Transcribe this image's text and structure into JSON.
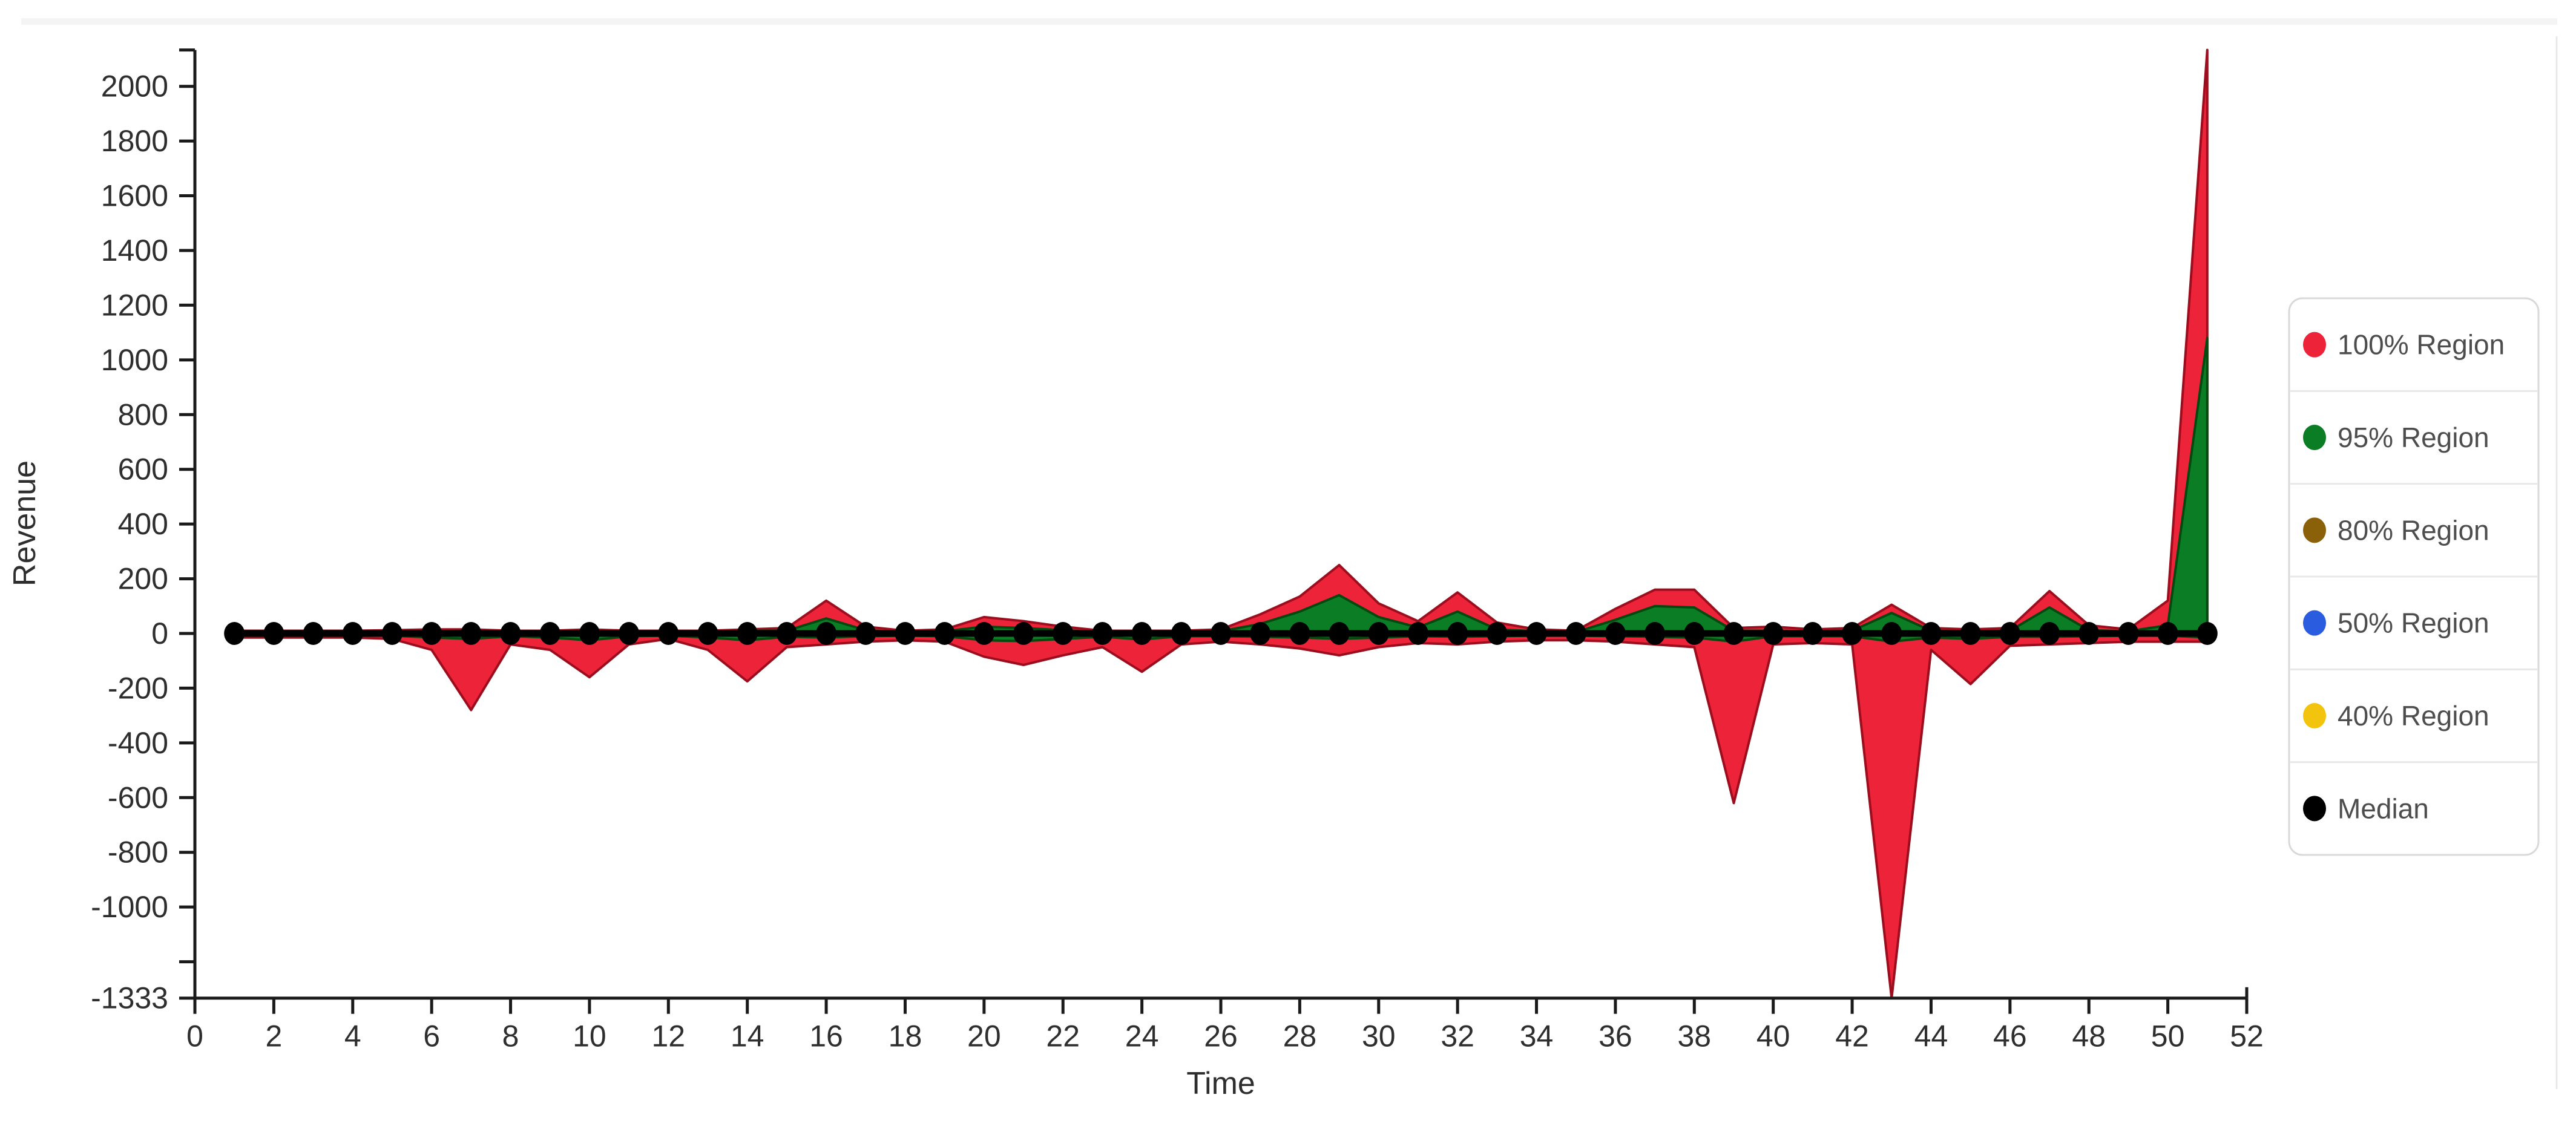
{
  "page": {
    "background": "#ffffff",
    "top_band_color": "#f4f4f4",
    "right_divider_color": "#e9e9e9"
  },
  "axis_titles": {
    "y": "Revenue",
    "x": "Time"
  },
  "legend": {
    "position": "right",
    "items": [
      {
        "label": "100% Region",
        "color": "#ED2439",
        "icon": "circle"
      },
      {
        "label": "95% Region",
        "color": "#0B7D24",
        "icon": "circle"
      },
      {
        "label": "80% Region",
        "color": "#8A6108",
        "icon": "circle"
      },
      {
        "label": "50% Region",
        "color": "#2A5CDF",
        "icon": "circle"
      },
      {
        "label": "40% Region",
        "color": "#F2C40D",
        "icon": "circle"
      },
      {
        "label": "Median",
        "color": "#000000",
        "icon": "circle"
      }
    ]
  },
  "chart_data": {
    "type": "area",
    "title": "",
    "xlabel": "Time",
    "ylabel": "Revenue",
    "xlim": [
      0,
      52
    ],
    "ylim": [
      -1333,
      2133
    ],
    "grid": false,
    "legend_position": "right",
    "x_ticks": [
      0,
      2,
      4,
      6,
      8,
      10,
      12,
      14,
      16,
      18,
      20,
      22,
      24,
      26,
      28,
      30,
      32,
      34,
      36,
      38,
      40,
      42,
      44,
      46,
      48,
      50,
      52
    ],
    "y_ticks": [
      {
        "v": 2133,
        "label": ""
      },
      {
        "v": 2000,
        "label": "2000"
      },
      {
        "v": 1800,
        "label": "1800"
      },
      {
        "v": 1600,
        "label": "1600"
      },
      {
        "v": 1400,
        "label": "1400"
      },
      {
        "v": 1200,
        "label": "1200"
      },
      {
        "v": 1000,
        "label": "1000"
      },
      {
        "v": 800,
        "label": "800"
      },
      {
        "v": 600,
        "label": "600"
      },
      {
        "v": 400,
        "label": "400"
      },
      {
        "v": 200,
        "label": "200"
      },
      {
        "v": 0,
        "label": "0"
      },
      {
        "v": -200,
        "label": "-200"
      },
      {
        "v": -400,
        "label": "-400"
      },
      {
        "v": -600,
        "label": "-600"
      },
      {
        "v": -800,
        "label": "-800"
      },
      {
        "v": -1000,
        "label": "-1000"
      },
      {
        "v": -1200,
        "label": ""
      },
      {
        "v": -1333,
        "label": "-1333"
      }
    ],
    "x": [
      1,
      2,
      3,
      4,
      5,
      6,
      7,
      8,
      9,
      10,
      11,
      12,
      13,
      14,
      15,
      16,
      17,
      18,
      19,
      20,
      21,
      22,
      23,
      24,
      25,
      26,
      27,
      28,
      29,
      30,
      31,
      32,
      33,
      34,
      35,
      36,
      37,
      38,
      39,
      40,
      41,
      42,
      43,
      44,
      45,
      46,
      47,
      48,
      49,
      50,
      51
    ],
    "series": [
      {
        "name": "100% Region",
        "kind": "band",
        "fill": "#ED2439",
        "stroke": "#9C0E1E",
        "upper": [
          10,
          10,
          10,
          10,
          12,
          15,
          15,
          10,
          10,
          15,
          10,
          10,
          10,
          15,
          20,
          120,
          25,
          10,
          15,
          60,
          45,
          25,
          10,
          10,
          10,
          15,
          70,
          135,
          250,
          110,
          45,
          150,
          40,
          15,
          10,
          90,
          160,
          160,
          20,
          25,
          15,
          20,
          105,
          20,
          15,
          20,
          155,
          30,
          15,
          120,
          2133
        ],
        "lower": [
          -15,
          -15,
          -15,
          -15,
          -20,
          -60,
          -280,
          -40,
          -60,
          -160,
          -40,
          -20,
          -60,
          -175,
          -50,
          -40,
          -30,
          -25,
          -30,
          -85,
          -115,
          -80,
          -50,
          -140,
          -40,
          -30,
          -40,
          -55,
          -80,
          -50,
          -35,
          -40,
          -30,
          -25,
          -25,
          -30,
          -40,
          -50,
          -620,
          -40,
          -35,
          -40,
          -1333,
          -60,
          -185,
          -45,
          -40,
          -35,
          -30,
          -30,
          -30
        ]
      },
      {
        "name": "95% Region",
        "kind": "band",
        "fill": "#0B7D24",
        "stroke": "#04490F",
        "upper": [
          5,
          5,
          5,
          5,
          6,
          8,
          10,
          5,
          5,
          10,
          5,
          5,
          5,
          10,
          10,
          55,
          12,
          5,
          8,
          25,
          20,
          12,
          5,
          5,
          5,
          8,
          35,
          80,
          140,
          60,
          22,
          80,
          15,
          8,
          5,
          50,
          100,
          95,
          10,
          10,
          8,
          10,
          75,
          10,
          8,
          10,
          95,
          12,
          8,
          30,
          1080
        ],
        "lower": [
          -8,
          -8,
          -8,
          -8,
          -8,
          -15,
          -20,
          -10,
          -15,
          -25,
          -10,
          -8,
          -15,
          -25,
          -12,
          -15,
          -10,
          -8,
          -10,
          -25,
          -28,
          -20,
          -12,
          -22,
          -10,
          -10,
          -12,
          -15,
          -20,
          -15,
          -10,
          -12,
          -10,
          -8,
          -8,
          -10,
          -12,
          -15,
          -30,
          -10,
          -10,
          -10,
          -30,
          -15,
          -20,
          -12,
          -12,
          -10,
          -8,
          -8,
          -15
        ]
      },
      {
        "name": "80% Region",
        "kind": "band",
        "fill": "#8A6108",
        "stroke": "#8A6108",
        "note": "band is too narrow to be visually distinguishable behind the median line",
        "upper": [
          6,
          6,
          6,
          6,
          6,
          6,
          6,
          6,
          6,
          6,
          6,
          6,
          6,
          6,
          6,
          6,
          6,
          6,
          6,
          6,
          6,
          6,
          6,
          6,
          6,
          6,
          6,
          6,
          6,
          6,
          6,
          6,
          6,
          6,
          6,
          6,
          6,
          6,
          6,
          6,
          6,
          6,
          6,
          6,
          6,
          6,
          6,
          6,
          6,
          6,
          6
        ],
        "lower": [
          -6,
          -6,
          -6,
          -6,
          -6,
          -6,
          -6,
          -6,
          -6,
          -6,
          -6,
          -6,
          -6,
          -6,
          -6,
          -6,
          -6,
          -6,
          -6,
          -6,
          -6,
          -6,
          -6,
          -6,
          -6,
          -6,
          -6,
          -6,
          -6,
          -6,
          -6,
          -6,
          -6,
          -6,
          -6,
          -6,
          -6,
          -6,
          -6,
          -6,
          -6,
          -6,
          -6,
          -6,
          -6,
          -6,
          -6,
          -6,
          -6,
          -6,
          -6
        ]
      },
      {
        "name": "50% Region",
        "kind": "band",
        "fill": "#2A5CDF",
        "stroke": "#2A5CDF",
        "note": "band is too narrow to be visually distinguishable behind the median line",
        "upper": [
          4,
          4,
          4,
          4,
          4,
          4,
          4,
          4,
          4,
          4,
          4,
          4,
          4,
          4,
          4,
          4,
          4,
          4,
          4,
          4,
          4,
          4,
          4,
          4,
          4,
          4,
          4,
          4,
          4,
          4,
          4,
          4,
          4,
          4,
          4,
          4,
          4,
          4,
          4,
          4,
          4,
          4,
          4,
          4,
          4,
          4,
          4,
          4,
          4,
          4,
          4
        ],
        "lower": [
          -4,
          -4,
          -4,
          -4,
          -4,
          -4,
          -4,
          -4,
          -4,
          -4,
          -4,
          -4,
          -4,
          -4,
          -4,
          -4,
          -4,
          -4,
          -4,
          -4,
          -4,
          -4,
          -4,
          -4,
          -4,
          -4,
          -4,
          -4,
          -4,
          -4,
          -4,
          -4,
          -4,
          -4,
          -4,
          -4,
          -4,
          -4,
          -4,
          -4,
          -4,
          -4,
          -4,
          -4,
          -4,
          -4,
          -4,
          -4,
          -4,
          -4,
          -4
        ]
      },
      {
        "name": "40% Region",
        "kind": "band",
        "fill": "#F2C40D",
        "stroke": "#F2C40D",
        "note": "band is too narrow to be visually distinguishable behind the median line",
        "upper": [
          3,
          3,
          3,
          3,
          3,
          3,
          3,
          3,
          3,
          3,
          3,
          3,
          3,
          3,
          3,
          3,
          3,
          3,
          3,
          3,
          3,
          3,
          3,
          3,
          3,
          3,
          3,
          3,
          3,
          3,
          3,
          3,
          3,
          3,
          3,
          3,
          3,
          3,
          3,
          3,
          3,
          3,
          3,
          3,
          3,
          3,
          3,
          3,
          3,
          3,
          3
        ],
        "lower": [
          -3,
          -3,
          -3,
          -3,
          -3,
          -3,
          -3,
          -3,
          -3,
          -3,
          -3,
          -3,
          -3,
          -3,
          -3,
          -3,
          -3,
          -3,
          -3,
          -3,
          -3,
          -3,
          -3,
          -3,
          -3,
          -3,
          -3,
          -3,
          -3,
          -3,
          -3,
          -3,
          -3,
          -3,
          -3,
          -3,
          -3,
          -3,
          -3,
          -3,
          -3,
          -3,
          -3,
          -3,
          -3,
          -3,
          -3,
          -3,
          -3,
          -3,
          -3
        ]
      },
      {
        "name": "Median",
        "kind": "line",
        "color": "#000000",
        "marker": "dot",
        "values": [
          0,
          0,
          0,
          0,
          0,
          0,
          0,
          0,
          0,
          0,
          0,
          0,
          0,
          0,
          0,
          0,
          0,
          0,
          0,
          0,
          0,
          0,
          0,
          0,
          0,
          0,
          0,
          0,
          0,
          0,
          0,
          0,
          0,
          0,
          0,
          0,
          0,
          0,
          0,
          0,
          0,
          0,
          0,
          0,
          0,
          0,
          0,
          0,
          0,
          0,
          0
        ]
      }
    ]
  }
}
